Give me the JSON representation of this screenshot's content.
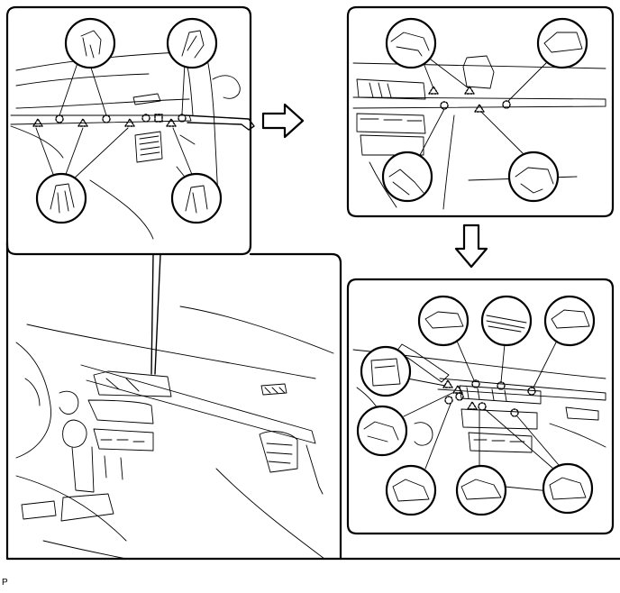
{
  "figure": {
    "code": "P"
  },
  "colors": {
    "line": "#000000",
    "background": "#ffffff"
  },
  "icons": [
    "arrow-right-icon",
    "arrow-down-icon",
    "clip-circle-icon",
    "claw-triangle-icon",
    "clip-square-icon"
  ]
}
